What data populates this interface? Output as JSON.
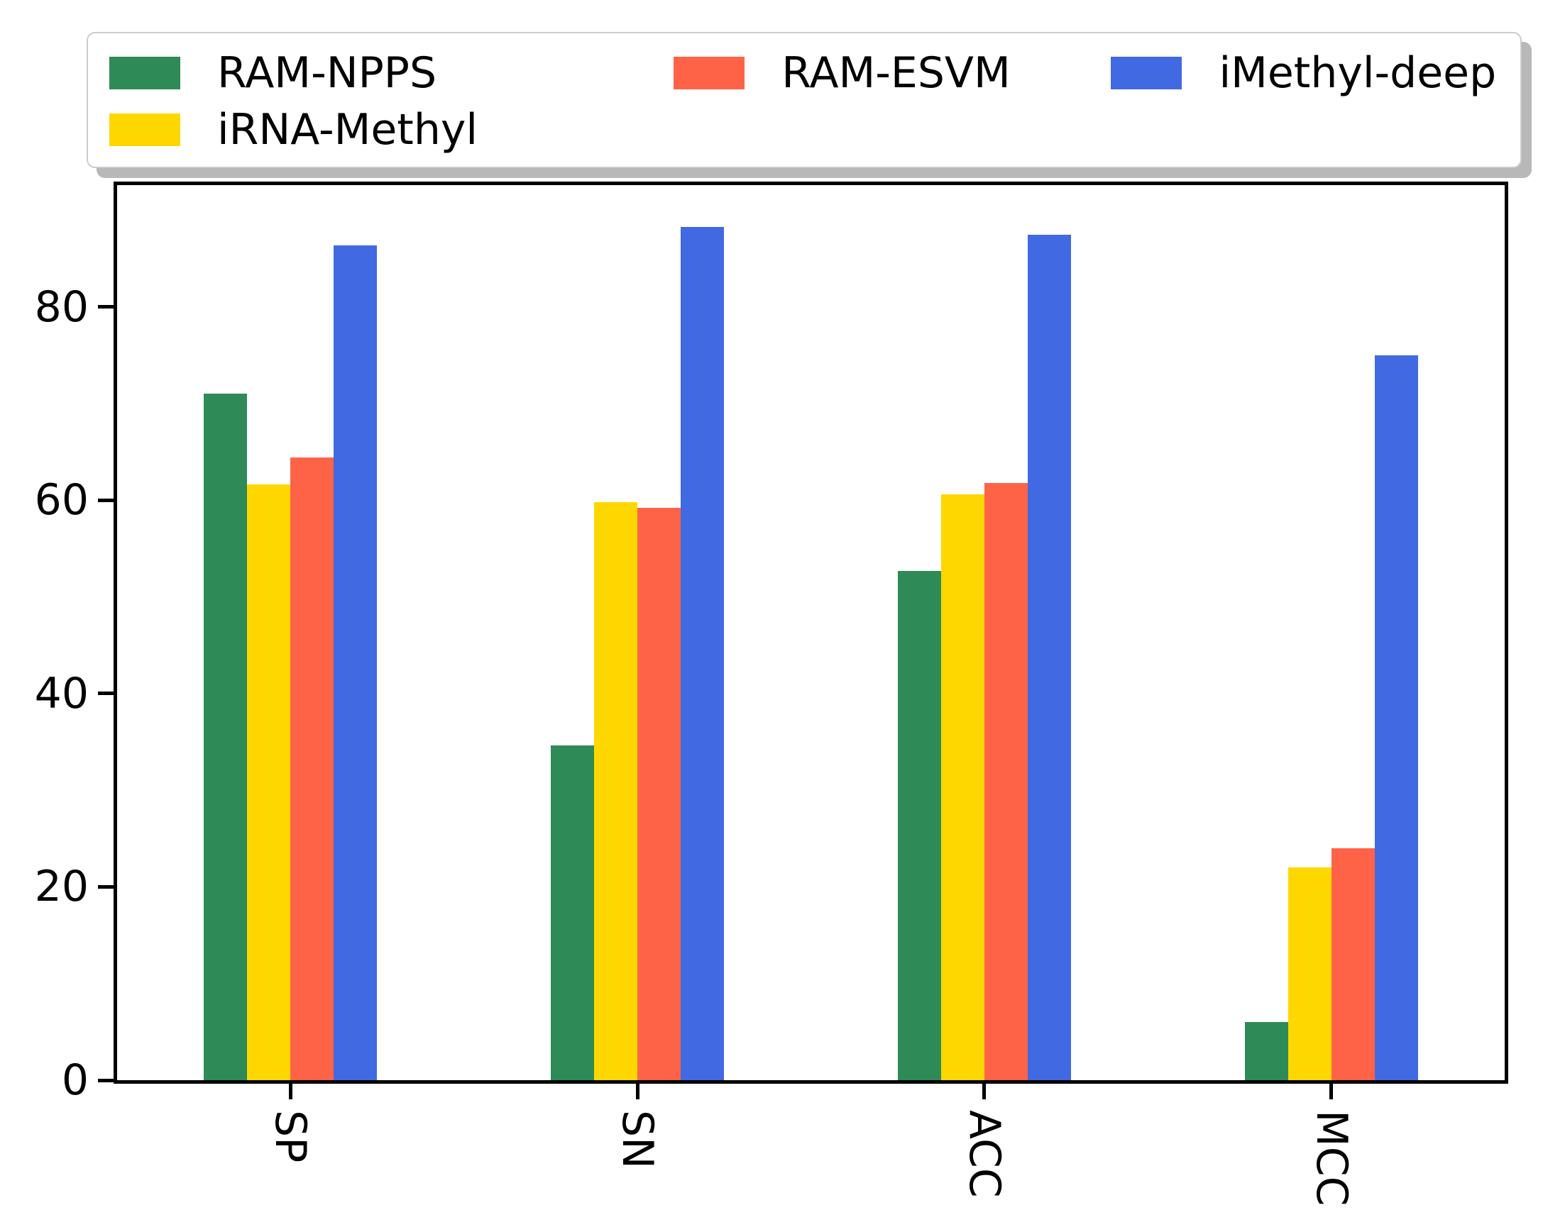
{
  "legend": {
    "items": [
      {
        "label": "RAM-NPPS",
        "color": "#2E8B57"
      },
      {
        "label": "RAM-ESVM",
        "color": "#FF6347"
      },
      {
        "label": "iMethyl-deep",
        "color": "#4169E1"
      },
      {
        "label": "iRNA-Methyl",
        "color": "#FFD700"
      }
    ]
  },
  "chart_data": {
    "type": "bar",
    "title": "",
    "xlabel": "",
    "ylabel": "",
    "categories": [
      "SP",
      "SN",
      "ACC",
      "MCC"
    ],
    "series": [
      {
        "name": "RAM-NPPS",
        "color": "#2E8B57",
        "values": [
          71.0,
          34.6,
          52.7,
          6.0
        ]
      },
      {
        "name": "iRNA-Methyl",
        "color": "#FFD700",
        "values": [
          61.6,
          59.8,
          60.6,
          22.0
        ]
      },
      {
        "name": "RAM-ESVM",
        "color": "#FF6347",
        "values": [
          64.4,
          59.2,
          61.8,
          24.0
        ]
      },
      {
        "name": "iMethyl-deep",
        "color": "#4169E1",
        "values": [
          86.4,
          88.3,
          87.5,
          75.0
        ]
      }
    ],
    "yticks": [
      0,
      20,
      40,
      60,
      80
    ],
    "ylim": [
      0,
      92.6
    ],
    "grid": false,
    "legend_position": "top",
    "xtick_rotation": 90
  }
}
